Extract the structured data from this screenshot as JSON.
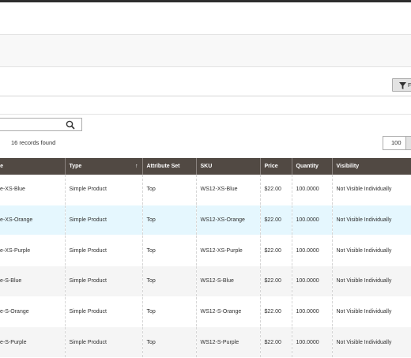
{
  "toolbar": {
    "filters_label": "F",
    "records_found": "16 records found",
    "per_page": "100"
  },
  "grid": {
    "columns": [
      {
        "label": "Name"
      },
      {
        "label": "Type",
        "sort": "↑"
      },
      {
        "label": "Attribute Set"
      },
      {
        "label": "SKU"
      },
      {
        "label": "Price"
      },
      {
        "label": "Quantity"
      },
      {
        "label": "Visibility"
      },
      {
        "label": ""
      }
    ],
    "rows": [
      {
        "name": "nt Tee-XS-Blue",
        "type": "Simple Product",
        "attr": "Top",
        "sku": "WS12-XS-Blue",
        "price": "$22.00",
        "qty": "100.0000",
        "vis": "Not Visible Individually"
      },
      {
        "name": "nt Tee-XS-Orange",
        "type": "Simple Product",
        "attr": "Top",
        "sku": "WS12-XS-Orange",
        "price": "$22.00",
        "qty": "100.0000",
        "vis": "Not Visible Individually"
      },
      {
        "name": "nt Tee-XS-Purple",
        "type": "Simple Product",
        "attr": "Top",
        "sku": "WS12-XS-Purple",
        "price": "$22.00",
        "qty": "100.0000",
        "vis": "Not Visible Individually"
      },
      {
        "name": "nt Tee-S-Blue",
        "type": "Simple Product",
        "attr": "Top",
        "sku": "WS12-S-Blue",
        "price": "$22.00",
        "qty": "100.0000",
        "vis": "Not Visible Individually"
      },
      {
        "name": "nt Tee-S-Orange",
        "type": "Simple Product",
        "attr": "Top",
        "sku": "WS12-S-Orange",
        "price": "$22.00",
        "qty": "100.0000",
        "vis": "Not Visible Individually"
      },
      {
        "name": "nt Tee-S-Purple",
        "type": "Simple Product",
        "attr": "Top",
        "sku": "WS12-S-Purple",
        "price": "$22.00",
        "qty": "100.0000",
        "vis": "Not Visible Individually"
      }
    ]
  },
  "colors": {
    "header_bg": "#514943",
    "row_hover": "#e5f7fe",
    "row_alt": "#f5f5f5"
  },
  "icons": {
    "filter": "filter-icon",
    "search": "search-icon"
  }
}
